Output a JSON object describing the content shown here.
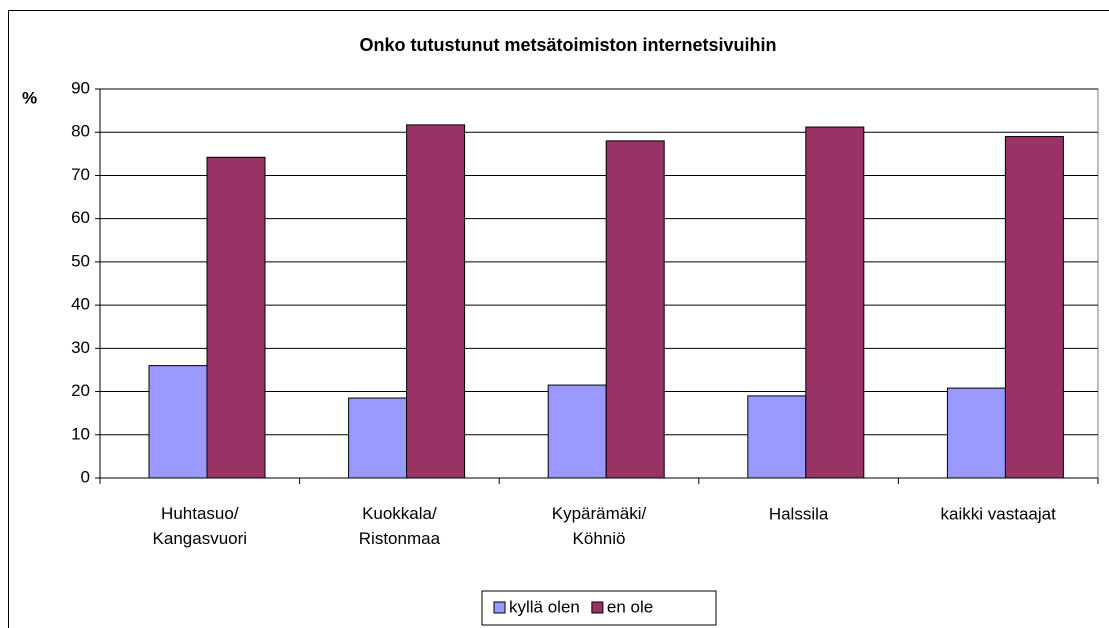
{
  "chart_data": {
    "type": "bar",
    "title": "Onko tutustunut metsätoimiston internetsivuihin",
    "y_axis_label": "%",
    "categories": [
      "Huhtasuo/\nKangasvuori",
      "Kuokkala/\nRistonmaa",
      "Kypärämäki/\nKöhniö",
      "Halssila",
      "kaikki vastaajat"
    ],
    "series": [
      {
        "name": "kyllä olen",
        "color": "#9999ff",
        "values": [
          26,
          18.5,
          21.5,
          19,
          20.8
        ]
      },
      {
        "name": "en ole",
        "color": "#993366",
        "values": [
          74.2,
          81.7,
          78,
          81.2,
          79
        ]
      }
    ],
    "ylim": [
      0,
      90
    ],
    "yticks": [
      0,
      10,
      20,
      30,
      40,
      50,
      60,
      70,
      80,
      90
    ],
    "grid": true,
    "legend": "bottom"
  }
}
